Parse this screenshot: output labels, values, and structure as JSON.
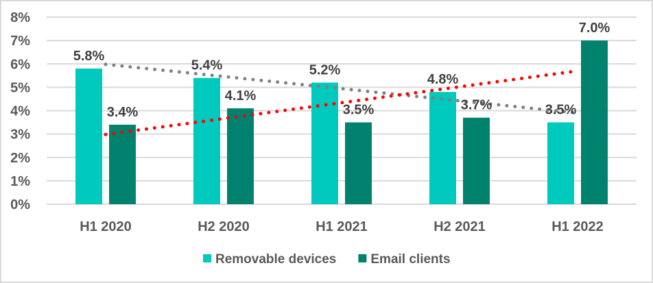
{
  "chart_data": {
    "type": "bar",
    "title": "",
    "xlabel": "",
    "ylabel": "",
    "categories": [
      "H1 2020",
      "H2 2020",
      "H1 2021",
      "H2 2021",
      "H1 2022"
    ],
    "ylim": [
      0,
      8
    ],
    "yticks": [
      0,
      1,
      2,
      3,
      4,
      5,
      6,
      7,
      8
    ],
    "ytick_labels": [
      "0%",
      "1%",
      "2%",
      "3%",
      "4%",
      "5%",
      "6%",
      "7%",
      "8%"
    ],
    "grid": true,
    "legend_position": "bottom",
    "series": [
      {
        "name": "Removable devices",
        "color": "#00c9bd",
        "values": [
          5.8,
          5.4,
          5.2,
          4.8,
          3.5
        ],
        "data_labels": [
          "5.8%",
          "5.4%",
          "5.2%",
          "4.8%",
          "3.5%"
        ],
        "trendline": {
          "type": "linear",
          "style": "dotted",
          "color": "#808080"
        }
      },
      {
        "name": "Email clients",
        "color": "#00826e",
        "values": [
          3.4,
          4.1,
          3.5,
          3.7,
          7.0
        ],
        "data_labels": [
          "3.4%",
          "4.1%",
          "3.5%",
          "3.7%",
          "7.0%"
        ],
        "trendline": {
          "type": "linear",
          "style": "dotted",
          "color": "#ff0000"
        }
      }
    ]
  }
}
